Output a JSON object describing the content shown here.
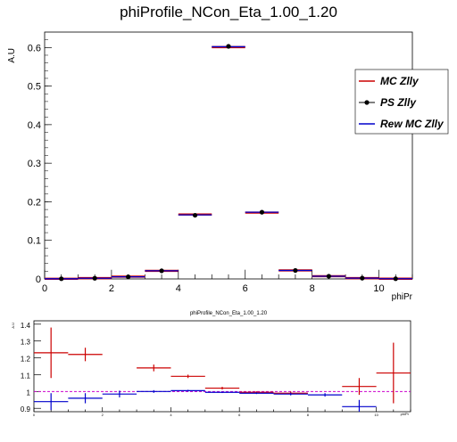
{
  "chart_data": [
    {
      "type": "scatter",
      "title": "phiProfile_NCon_Eta_1.00_1.20",
      "xlabel": "phiPr",
      "ylabel": "A.U",
      "xlim": [
        0,
        11
      ],
      "ylim": [
        0,
        0.64
      ],
      "x_ticks": [
        "0",
        "2",
        "4",
        "6",
        "8",
        "10"
      ],
      "y_ticks": [
        "0",
        "0.1",
        "0.2",
        "0.3",
        "0.4",
        "0.5",
        "0.6"
      ],
      "legend_position": "right",
      "bins": [
        0.5,
        1.5,
        2.5,
        3.5,
        4.5,
        5.5,
        6.5,
        7.5,
        8.5,
        9.5,
        10.5
      ],
      "series": [
        {
          "name": "MC Zlly",
          "color": "#cc0000",
          "style": "hist",
          "values": [
            0.0005,
            0.002,
            0.006,
            0.021,
            0.167,
            0.601,
            0.172,
            0.022,
            0.007,
            0.002,
            0.0006
          ]
        },
        {
          "name": "PS Zlly",
          "color": "#000000",
          "style": "markers",
          "values": [
            0.0004,
            0.0017,
            0.0055,
            0.021,
            0.165,
            0.603,
            0.173,
            0.022,
            0.007,
            0.002,
            0.0005
          ]
        },
        {
          "name": "Rew MC Zlly",
          "color": "#0000cc",
          "style": "hist",
          "values": [
            0.0004,
            0.0017,
            0.0055,
            0.021,
            0.166,
            0.602,
            0.173,
            0.022,
            0.007,
            0.002,
            0.0005
          ]
        }
      ]
    },
    {
      "type": "scatter",
      "title": "phiProfile_NCon_Eta_1.00_1.20",
      "xlabel": "phiPr",
      "ylabel": "A.U",
      "xlim": [
        0,
        11
      ],
      "ylim": [
        0.88,
        1.42
      ],
      "y_ticks": [
        "0.9",
        "1",
        "1.1",
        "1.2",
        "1.3",
        "1.4"
      ],
      "reference_line": 1.0,
      "series": [
        {
          "color": "#cc0000",
          "x": [
            0.5,
            1.5,
            3.5,
            4.5,
            5.5,
            6.5,
            7.5,
            9.5,
            10.5
          ],
          "values": [
            1.23,
            1.22,
            1.14,
            1.09,
            1.02,
            0.995,
            0.99,
            1.03,
            1.11
          ],
          "errors": [
            0.15,
            0.04,
            0.02,
            0.01,
            0.008,
            0.006,
            0.01,
            0.05,
            0.18
          ]
        },
        {
          "color": "#0000cc",
          "x": [
            0.5,
            1.5,
            2.5,
            3.5,
            4.5,
            5.5,
            6.5,
            7.5,
            8.5,
            9.5
          ],
          "values": [
            0.94,
            0.96,
            0.985,
            1.0,
            1.005,
            0.995,
            0.99,
            0.985,
            0.98,
            0.91
          ],
          "errors": [
            0.05,
            0.03,
            0.02,
            0.008,
            0.005,
            0.004,
            0.005,
            0.008,
            0.01,
            0.04
          ]
        }
      ]
    }
  ]
}
